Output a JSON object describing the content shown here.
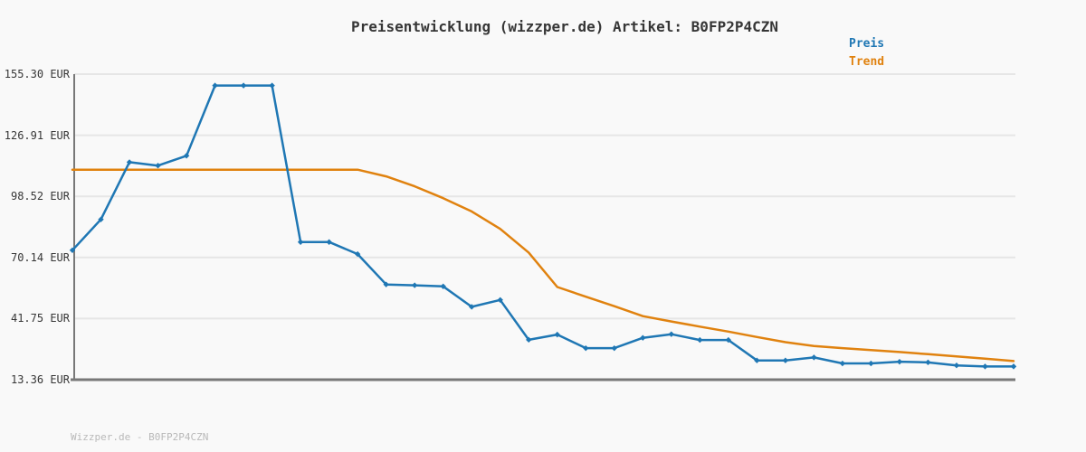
{
  "chart": {
    "title": "Preisentwicklung (wizzper.de) Artikel: B0FP2P4CZN"
  },
  "legend": [
    {
      "label": "Preis",
      "color": "#1f77b4"
    },
    {
      "label": "Trend",
      "color": "#e0820f"
    }
  ],
  "footer": {
    "text": "Wizzper.de - B0FP2P4CZN"
  },
  "colors": {
    "background": "#f9f9f9",
    "gridline": "#e6e6e6",
    "axis": "#787878",
    "price_blue": "#1f77b4",
    "trend_orange": "#e0820f",
    "title_text": "#363636",
    "footer_text": "#b9b9b9"
  },
  "chart_data": {
    "type": "line",
    "title": "Preisentwicklung (wizzper.de) Artikel: B0FP2P4CZN",
    "currency": "EUR",
    "ylabel": "",
    "xlabel": "",
    "x_axis_labels_visible": false,
    "points": 34,
    "ylim": [
      13.36,
      155.3
    ],
    "y_ticks": [
      "155.30 EUR",
      "126.91 EUR",
      "98.52 EUR",
      "70.14 EUR",
      "41.75 EUR",
      "13.36 EUR"
    ],
    "grid": "horizontal",
    "legend_position": "top-right",
    "series": [
      {
        "name": "Preis",
        "color": "#1f77b4",
        "marker": "diamond",
        "values": [
          73.5,
          87.8,
          114.4,
          112.8,
          117.4,
          150.0,
          150.0,
          150.0,
          77.3,
          77.3,
          71.7,
          57.6,
          57.2,
          56.7,
          47.2,
          50.4,
          31.9,
          34.3,
          28.0,
          28.0,
          32.8,
          34.5,
          31.8,
          31.8,
          22.3,
          22.3,
          23.7,
          20.9,
          20.9,
          21.7,
          21.4,
          20.0,
          19.5,
          19.5
        ]
      },
      {
        "name": "Trend",
        "color": "#e0820f",
        "marker": "none",
        "values": [
          110.9,
          110.9,
          110.9,
          110.9,
          110.9,
          110.9,
          110.9,
          110.9,
          110.9,
          110.9,
          110.9,
          107.8,
          103.2,
          97.7,
          91.5,
          83.4,
          72.4,
          56.4,
          51.9,
          47.5,
          42.9,
          40.4,
          38.0,
          35.7,
          33.2,
          30.8,
          29.0,
          28.0,
          27.1,
          26.2,
          25.2,
          24.2,
          23.1,
          22.0
        ]
      }
    ]
  }
}
